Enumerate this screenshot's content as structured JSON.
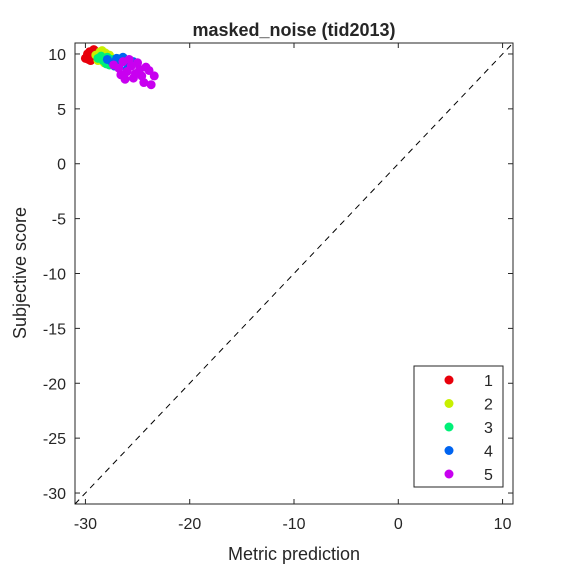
{
  "chart_data": {
    "type": "scatter",
    "title": "masked_noise (tid2013)",
    "xlabel": "Metric prediction",
    "ylabel": "Subjective score",
    "xlim": [
      -31,
      11
    ],
    "ylim": [
      -31,
      11
    ],
    "x_ticks": [
      -30,
      -20,
      -10,
      0,
      10
    ],
    "y_ticks": [
      10,
      5,
      0,
      -5,
      -10,
      -15,
      -20,
      -25,
      -30
    ],
    "x_tick_labels": [
      "-30",
      "-20",
      "-10",
      "0",
      "10"
    ],
    "y_tick_labels": [
      "10",
      "5",
      "0",
      "-5",
      "-10",
      "-15",
      "-20",
      "-25",
      "-30"
    ],
    "grid": false,
    "identity_line": true,
    "legend_position": "bottom-right",
    "series": [
      {
        "name": "1",
        "color": "#e8000b",
        "points": [
          [
            -30.0,
            9.6
          ],
          [
            -29.8,
            10.0
          ],
          [
            -29.6,
            10.2
          ],
          [
            -29.4,
            9.9
          ],
          [
            -29.2,
            10.4
          ],
          [
            -29.0,
            9.7
          ],
          [
            -29.5,
            9.4
          ],
          [
            -28.9,
            10.1
          ],
          [
            -29.7,
            9.5
          ],
          [
            -28.7,
            9.9
          ],
          [
            -29.1,
            10.3
          ],
          [
            -28.6,
            9.6
          ]
        ]
      },
      {
        "name": "2",
        "color": "#c8f000",
        "points": [
          [
            -29.0,
            9.9
          ],
          [
            -28.6,
            10.2
          ],
          [
            -28.3,
            9.7
          ],
          [
            -28.0,
            10.0
          ],
          [
            -28.8,
            9.4
          ],
          [
            -28.4,
            10.3
          ],
          [
            -27.9,
            9.6
          ],
          [
            -28.2,
            9.2
          ],
          [
            -27.7,
            9.9
          ],
          [
            -28.5,
            9.5
          ],
          [
            -27.6,
            9.3
          ],
          [
            -28.1,
            10.1
          ]
        ]
      },
      {
        "name": "3",
        "color": "#00f078",
        "points": [
          [
            -28.8,
            9.6
          ],
          [
            -28.3,
            9.4
          ],
          [
            -27.9,
            9.7
          ],
          [
            -27.5,
            9.5
          ],
          [
            -28.0,
            9.1
          ],
          [
            -27.3,
            9.3
          ],
          [
            -27.7,
            9.0
          ],
          [
            -27.0,
            9.6
          ],
          [
            -28.5,
            9.8
          ],
          [
            -26.8,
            9.2
          ],
          [
            -27.2,
            8.9
          ],
          [
            -26.6,
            9.4
          ]
        ]
      },
      {
        "name": "4",
        "color": "#0064f0",
        "points": [
          [
            -27.9,
            9.5
          ],
          [
            -27.4,
            9.2
          ],
          [
            -27.0,
            9.6
          ],
          [
            -26.6,
            9.3
          ],
          [
            -27.2,
            8.9
          ],
          [
            -26.2,
            9.5
          ],
          [
            -26.8,
            8.8
          ],
          [
            -25.9,
            9.1
          ],
          [
            -26.4,
            9.7
          ],
          [
            -25.6,
            9.0
          ],
          [
            -26.0,
            8.6
          ],
          [
            -25.4,
            9.3
          ]
        ]
      },
      {
        "name": "5",
        "color": "#c800f0",
        "points": [
          [
            -27.3,
            9.0
          ],
          [
            -26.8,
            8.7
          ],
          [
            -26.4,
            9.3
          ],
          [
            -26.0,
            8.4
          ],
          [
            -25.6,
            8.9
          ],
          [
            -25.2,
            8.2
          ],
          [
            -25.8,
            9.5
          ],
          [
            -24.8,
            8.6
          ],
          [
            -24.4,
            7.4
          ],
          [
            -23.7,
            7.2
          ],
          [
            -23.9,
            8.5
          ],
          [
            -23.4,
            8.0
          ],
          [
            -24.2,
            8.8
          ],
          [
            -25.4,
            7.8
          ],
          [
            -26.6,
            8.1
          ],
          [
            -25.0,
            9.2
          ],
          [
            -24.6,
            8.0
          ],
          [
            -26.2,
            7.7
          ]
        ]
      }
    ]
  }
}
